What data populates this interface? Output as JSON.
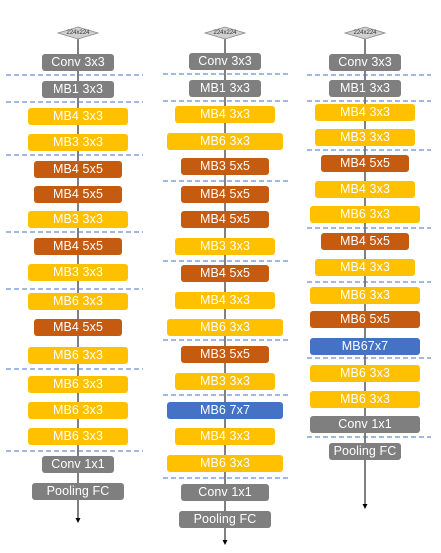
{
  "colors": {
    "gray": "#7f7f7f",
    "yellow": "#ffc000",
    "orange": "#c55a11",
    "blue": "#4472c4",
    "divider": "#4472c4",
    "arrow": "#000000",
    "diamond": "#d0d0d0"
  },
  "columns": [
    {
      "input_label": "224x224",
      "blocks": [
        {
          "label": "Conv 3x3",
          "kind": "gray"
        },
        {
          "label": "MB1 3x3",
          "kind": "gray"
        },
        {
          "label": "MB4 3x3",
          "kind": "yellow"
        },
        {
          "label": "MB3 3x3",
          "kind": "yellow"
        },
        {
          "label": "MB4 5x5",
          "kind": "orange"
        },
        {
          "label": "MB4 5x5",
          "kind": "orange"
        },
        {
          "label": "MB3 3x3",
          "kind": "yellow"
        },
        {
          "label": "MB4 5x5",
          "kind": "orange"
        },
        {
          "label": "MB3 3x3",
          "kind": "yellow"
        },
        {
          "label": "MB6 3x3",
          "kind": "yellow"
        },
        {
          "label": "MB4 5x5",
          "kind": "orange"
        },
        {
          "label": "MB6 3x3",
          "kind": "yellow"
        },
        {
          "label": "MB6 3x3",
          "kind": "yellow"
        },
        {
          "label": "MB6 3x3",
          "kind": "yellow"
        },
        {
          "label": "MB6 3x3",
          "kind": "yellow"
        },
        {
          "label": "Conv 1x1",
          "kind": "gray"
        },
        {
          "label": "Pooling FC",
          "kind": "gray"
        }
      ]
    },
    {
      "input_label": "224x224",
      "blocks": [
        {
          "label": "Conv 3x3",
          "kind": "gray"
        },
        {
          "label": "MB1 3x3",
          "kind": "gray"
        },
        {
          "label": "MB4 3x3",
          "kind": "yellow"
        },
        {
          "label": "MB6 3x3",
          "kind": "yellow"
        },
        {
          "label": "MB3 5x5",
          "kind": "orange"
        },
        {
          "label": "MB4 5x5",
          "kind": "orange"
        },
        {
          "label": "MB4 5x5",
          "kind": "orange"
        },
        {
          "label": "MB3 3x3",
          "kind": "yellow"
        },
        {
          "label": "MB4 5x5",
          "kind": "orange"
        },
        {
          "label": "MB4 3x3",
          "kind": "yellow"
        },
        {
          "label": "MB6 3x3",
          "kind": "yellow"
        },
        {
          "label": "MB3 5x5",
          "kind": "orange"
        },
        {
          "label": "MB3 3x3",
          "kind": "yellow"
        },
        {
          "label": "MB6 7x7",
          "kind": "blue"
        },
        {
          "label": "MB4 3x3",
          "kind": "yellow"
        },
        {
          "label": "MB6 3x3",
          "kind": "yellow"
        },
        {
          "label": "Conv 1x1",
          "kind": "gray"
        },
        {
          "label": "Pooling FC",
          "kind": "gray"
        }
      ]
    },
    {
      "input_label": "224x224",
      "blocks": [
        {
          "label": "Conv 3x3",
          "kind": "gray"
        },
        {
          "label": "MB1 3x3",
          "kind": "gray"
        },
        {
          "label": "MB4 3x3",
          "kind": "yellow"
        },
        {
          "label": "MB3 3x3",
          "kind": "yellow"
        },
        {
          "label": "MB4 5x5",
          "kind": "orange"
        },
        {
          "label": "MB4 3x3",
          "kind": "yellow"
        },
        {
          "label": "MB6 3x3",
          "kind": "yellow"
        },
        {
          "label": "MB4 5x5",
          "kind": "orange"
        },
        {
          "label": "MB4 3x3",
          "kind": "yellow"
        },
        {
          "label": "MB6 3x3",
          "kind": "yellow"
        },
        {
          "label": "MB6 5x5",
          "kind": "orange"
        },
        {
          "label": "MB67x7",
          "kind": "blue"
        },
        {
          "label": "MB6 3x3",
          "kind": "yellow"
        },
        {
          "label": "MB6 3x3",
          "kind": "yellow"
        },
        {
          "label": "Conv 1x1",
          "kind": "gray"
        },
        {
          "label": "Pooling FC",
          "kind": "gray"
        }
      ]
    }
  ]
}
